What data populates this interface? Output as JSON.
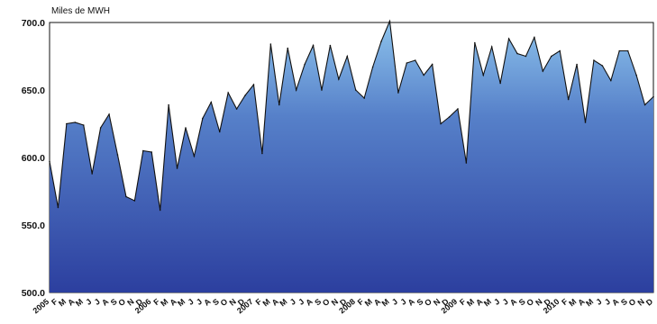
{
  "chart_data": {
    "type": "area",
    "ylabel": "Miles de MWH",
    "ylim": [
      500,
      700
    ],
    "yticks": [
      "700.0",
      "650.0",
      "600.0",
      "550.0",
      "500.0"
    ],
    "ytick_values": [
      700,
      650,
      600,
      550,
      500
    ],
    "grid": false,
    "legend": "none",
    "fill_top_color": "#8dc3ec",
    "fill_bottom_color": "#2c3f9f",
    "line_color": "#111111",
    "categories": [
      "2005",
      "F",
      "M",
      "A",
      "M",
      "J",
      "J",
      "A",
      "S",
      "O",
      "N",
      "D",
      "2006",
      "F",
      "M",
      "A",
      "M",
      "J",
      "J",
      "A",
      "S",
      "O",
      "N",
      "D",
      "2007",
      "F",
      "M",
      "A",
      "M",
      "J",
      "J",
      "A",
      "S",
      "O",
      "N",
      "D",
      "2008",
      "F",
      "M",
      "A",
      "M",
      "J",
      "J",
      "A",
      "S",
      "O",
      "N",
      "D",
      "2009",
      "F",
      "M",
      "A",
      "M",
      "J",
      "J",
      "A",
      "S",
      "O",
      "N",
      "D",
      "2010",
      "F",
      "M",
      "A",
      "M",
      "J",
      "J",
      "A",
      "S",
      "O",
      "N",
      "D"
    ],
    "series": [
      {
        "values": [
          597,
          563,
          625,
          626,
          624,
          588,
          622,
          632,
          602,
          571,
          568,
          605,
          604,
          561,
          639,
          592,
          622,
          601,
          629,
          641,
          619,
          648,
          636,
          646,
          654,
          603,
          684,
          639,
          681,
          650,
          669,
          683,
          650,
          683,
          658,
          675,
          650,
          644,
          667,
          686,
          701,
          648,
          670,
          672,
          661,
          669,
          625,
          630,
          636,
          596,
          685,
          661,
          682,
          655,
          688,
          677,
          675,
          689,
          664,
          675,
          679,
          643,
          669,
          626,
          672,
          668,
          657,
          679,
          679,
          661,
          639,
          645
        ]
      }
    ]
  }
}
